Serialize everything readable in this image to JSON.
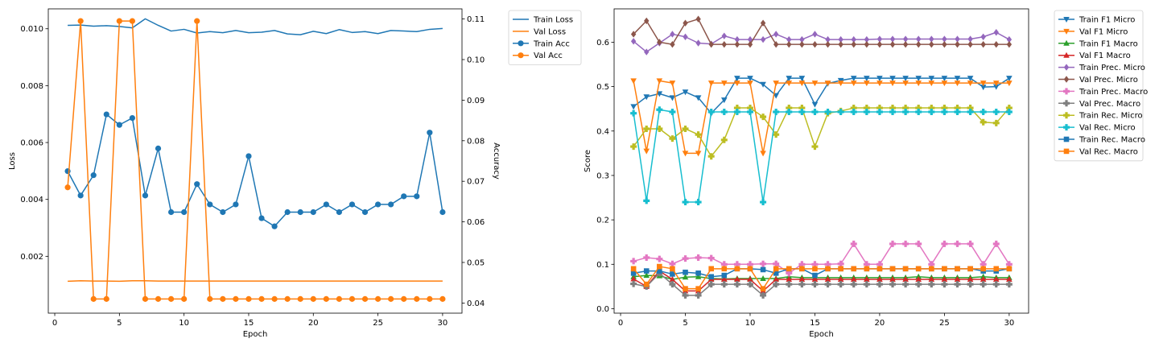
{
  "chart_data": [
    {
      "type": "line",
      "xlabel": "Epoch",
      "ylabel": "Loss",
      "y2label": "Accuracy",
      "xlim": [
        -0.5,
        31.5
      ],
      "ylim": [
        0.0,
        0.0107
      ],
      "y2lim": [
        0.0375,
        0.1125
      ],
      "x_ticks": [
        "0",
        "5",
        "10",
        "15",
        "20",
        "25",
        "30"
      ],
      "y_ticks": [
        "0.002",
        "0.004",
        "0.006",
        "0.008",
        "0.010"
      ],
      "y2_ticks": [
        "0.04",
        "0.05",
        "0.06",
        "0.07",
        "0.08",
        "0.09",
        "0.10",
        "0.11"
      ],
      "legend": "top-right (outside)",
      "x": [
        1,
        2,
        3,
        4,
        5,
        6,
        7,
        8,
        9,
        10,
        11,
        12,
        13,
        14,
        15,
        16,
        17,
        18,
        19,
        20,
        21,
        22,
        23,
        24,
        25,
        26,
        27,
        28,
        29,
        30
      ],
      "series": [
        {
          "name": "Train Loss",
          "axis": "left",
          "color": "#1f77b4",
          "marker": "none",
          "values": [
            0.01012,
            0.01013,
            0.01009,
            0.01011,
            0.01008,
            0.01003,
            0.01035,
            0.01012,
            0.00992,
            0.00998,
            0.00985,
            0.0099,
            0.00986,
            0.00994,
            0.00986,
            0.00988,
            0.00994,
            0.00982,
            0.00979,
            0.00991,
            0.00983,
            0.00997,
            0.00987,
            0.0099,
            0.00983,
            0.00994,
            0.00992,
            0.0099,
            0.00998,
            0.01001
          ]
        },
        {
          "name": "Val Loss",
          "axis": "left",
          "color": "#ff7f0e",
          "marker": "none",
          "values": [
            0.00112,
            0.00114,
            0.00113,
            0.00113,
            0.00112,
            0.00114,
            0.00114,
            0.00113,
            0.00113,
            0.00113,
            0.00113,
            0.00113,
            0.00113,
            0.00113,
            0.00113,
            0.00113,
            0.00113,
            0.00113,
            0.00113,
            0.00113,
            0.00113,
            0.00113,
            0.00113,
            0.00113,
            0.00113,
            0.00113,
            0.00113,
            0.00113,
            0.00113,
            0.00113
          ]
        },
        {
          "name": "Train Acc",
          "axis": "right",
          "color": "#1f77b4",
          "marker": "circle",
          "values": [
            0.0725,
            0.0665,
            0.0715,
            0.0865,
            0.0839,
            0.0856,
            0.0665,
            0.0781,
            0.0624,
            0.0624,
            0.0693,
            0.0643,
            0.0624,
            0.0643,
            0.0762,
            0.0609,
            0.0589,
            0.0624,
            0.0624,
            0.0624,
            0.0643,
            0.0624,
            0.0643,
            0.0624,
            0.0643,
            0.0643,
            0.0663,
            0.0663,
            0.082,
            0.0624
          ]
        },
        {
          "name": "Val Acc",
          "axis": "right",
          "color": "#ff7f0e",
          "marker": "circle",
          "values": [
            0.0685,
            0.1095,
            0.041,
            0.041,
            0.1095,
            0.1095,
            0.041,
            0.041,
            0.041,
            0.041,
            0.1095,
            0.041,
            0.041,
            0.041,
            0.041,
            0.041,
            0.041,
            0.041,
            0.041,
            0.041,
            0.041,
            0.041,
            0.041,
            0.041,
            0.041,
            0.041,
            0.041,
            0.041,
            0.041,
            0.041
          ]
        }
      ]
    },
    {
      "type": "line",
      "xlabel": "Epoch",
      "ylabel": "Score",
      "xlim": [
        -0.5,
        31.5
      ],
      "ylim": [
        -0.01,
        0.675
      ],
      "x_ticks": [
        "0",
        "5",
        "10",
        "15",
        "20",
        "25",
        "30"
      ],
      "y_ticks": [
        "0.0",
        "0.1",
        "0.2",
        "0.3",
        "0.4",
        "0.5",
        "0.6"
      ],
      "legend": "top-right (outside)",
      "x": [
        1,
        2,
        3,
        4,
        5,
        6,
        7,
        8,
        9,
        10,
        11,
        12,
        13,
        14,
        15,
        16,
        17,
        18,
        19,
        20,
        21,
        22,
        23,
        24,
        25,
        26,
        27,
        28,
        29,
        30
      ],
      "series": [
        {
          "name": "Train F1 Micro",
          "color": "#1f77b4",
          "marker": "tri-down",
          "values": [
            0.455,
            0.477,
            0.484,
            0.475,
            0.488,
            0.475,
            0.44,
            0.47,
            0.519,
            0.519,
            0.505,
            0.48,
            0.519,
            0.519,
            0.46,
            0.507,
            0.514,
            0.519,
            0.519,
            0.519,
            0.519,
            0.519,
            0.519,
            0.519,
            0.519,
            0.519,
            0.519,
            0.499,
            0.5,
            0.519
          ]
        },
        {
          "name": "Val F1 Micro",
          "color": "#ff7f0e",
          "marker": "tri-down",
          "values": [
            0.513,
            0.355,
            0.513,
            0.508,
            0.35,
            0.35,
            0.508,
            0.508,
            0.508,
            0.508,
            0.35,
            0.508,
            0.508,
            0.508,
            0.508,
            0.508,
            0.508,
            0.508,
            0.508,
            0.508,
            0.508,
            0.508,
            0.508,
            0.508,
            0.508,
            0.508,
            0.508,
            0.508,
            0.508,
            0.508
          ]
        },
        {
          "name": "Train F1 Macro",
          "color": "#2ca02c",
          "marker": "tri-up",
          "values": [
            0.072,
            0.075,
            0.074,
            0.066,
            0.071,
            0.072,
            0.068,
            0.067,
            0.068,
            0.068,
            0.068,
            0.068,
            0.072,
            0.07,
            0.07,
            0.07,
            0.07,
            0.07,
            0.07,
            0.07,
            0.07,
            0.07,
            0.072,
            0.07,
            0.07,
            0.07,
            0.07,
            0.072,
            0.07,
            0.07
          ]
        },
        {
          "name": "Val F1 Macro",
          "color": "#d62728",
          "marker": "tri-up",
          "values": [
            0.067,
            0.05,
            0.085,
            0.066,
            0.04,
            0.04,
            0.066,
            0.066,
            0.066,
            0.066,
            0.04,
            0.066,
            0.066,
            0.066,
            0.066,
            0.066,
            0.066,
            0.066,
            0.066,
            0.066,
            0.066,
            0.066,
            0.066,
            0.066,
            0.066,
            0.066,
            0.066,
            0.066,
            0.066,
            0.066
          ]
        },
        {
          "name": "Train Prec. Micro",
          "color": "#9467bd",
          "marker": "diamond",
          "values": [
            0.602,
            0.578,
            0.598,
            0.618,
            0.612,
            0.598,
            0.596,
            0.614,
            0.606,
            0.606,
            0.606,
            0.618,
            0.606,
            0.606,
            0.618,
            0.606,
            0.606,
            0.606,
            0.606,
            0.607,
            0.607,
            0.607,
            0.607,
            0.607,
            0.607,
            0.607,
            0.607,
            0.612,
            0.622,
            0.606
          ]
        },
        {
          "name": "Val Prec. Micro",
          "color": "#8c564b",
          "marker": "diamond",
          "values": [
            0.618,
            0.648,
            0.6,
            0.595,
            0.643,
            0.652,
            0.595,
            0.595,
            0.595,
            0.595,
            0.643,
            0.595,
            0.595,
            0.595,
            0.595,
            0.595,
            0.595,
            0.595,
            0.595,
            0.595,
            0.595,
            0.595,
            0.595,
            0.595,
            0.595,
            0.595,
            0.595,
            0.595,
            0.595,
            0.595
          ]
        },
        {
          "name": "Train Prec. Macro",
          "color": "#e377c2",
          "marker": "plus",
          "values": [
            0.107,
            0.115,
            0.112,
            0.101,
            0.113,
            0.115,
            0.114,
            0.1,
            0.1,
            0.1,
            0.101,
            0.101,
            0.08,
            0.1,
            0.1,
            0.1,
            0.101,
            0.146,
            0.1,
            0.1,
            0.146,
            0.146,
            0.146,
            0.1,
            0.146,
            0.146,
            0.146,
            0.1,
            0.146,
            0.1
          ]
        },
        {
          "name": "Val Prec. Macro",
          "color": "#7f7f7f",
          "marker": "plus",
          "values": [
            0.056,
            0.05,
            0.08,
            0.055,
            0.03,
            0.03,
            0.055,
            0.055,
            0.055,
            0.055,
            0.03,
            0.055,
            0.055,
            0.055,
            0.055,
            0.055,
            0.055,
            0.055,
            0.055,
            0.055,
            0.055,
            0.055,
            0.055,
            0.055,
            0.055,
            0.055,
            0.055,
            0.055,
            0.055,
            0.055
          ]
        },
        {
          "name": "Train Rec. Micro",
          "color": "#bcbd22",
          "marker": "plus",
          "values": [
            0.365,
            0.405,
            0.405,
            0.383,
            0.405,
            0.392,
            0.343,
            0.38,
            0.452,
            0.452,
            0.432,
            0.392,
            0.452,
            0.452,
            0.365,
            0.44,
            0.445,
            0.452,
            0.452,
            0.452,
            0.452,
            0.452,
            0.452,
            0.452,
            0.452,
            0.452,
            0.452,
            0.42,
            0.418,
            0.452
          ]
        },
        {
          "name": "Val Rec. Micro",
          "color": "#17becf",
          "marker": "plus",
          "values": [
            0.44,
            0.243,
            0.448,
            0.443,
            0.24,
            0.24,
            0.443,
            0.443,
            0.443,
            0.443,
            0.24,
            0.443,
            0.443,
            0.443,
            0.443,
            0.443,
            0.443,
            0.443,
            0.443,
            0.443,
            0.443,
            0.443,
            0.443,
            0.443,
            0.443,
            0.443,
            0.443,
            0.443,
            0.443,
            0.443
          ]
        },
        {
          "name": "Train Rec. Macro",
          "color": "#1f77b4",
          "marker": "square",
          "values": [
            0.08,
            0.085,
            0.085,
            0.078,
            0.082,
            0.08,
            0.072,
            0.075,
            0.09,
            0.09,
            0.088,
            0.08,
            0.09,
            0.09,
            0.075,
            0.09,
            0.09,
            0.09,
            0.09,
            0.09,
            0.09,
            0.09,
            0.09,
            0.09,
            0.09,
            0.09,
            0.09,
            0.085,
            0.085,
            0.09
          ]
        },
        {
          "name": "Val Rec. Macro",
          "color": "#ff7f0e",
          "marker": "square",
          "values": [
            0.09,
            0.055,
            0.095,
            0.09,
            0.045,
            0.045,
            0.09,
            0.09,
            0.09,
            0.09,
            0.045,
            0.09,
            0.09,
            0.09,
            0.09,
            0.09,
            0.09,
            0.09,
            0.09,
            0.09,
            0.09,
            0.09,
            0.09,
            0.09,
            0.09,
            0.09,
            0.09,
            0.09,
            0.09,
            0.09
          ]
        }
      ]
    }
  ]
}
